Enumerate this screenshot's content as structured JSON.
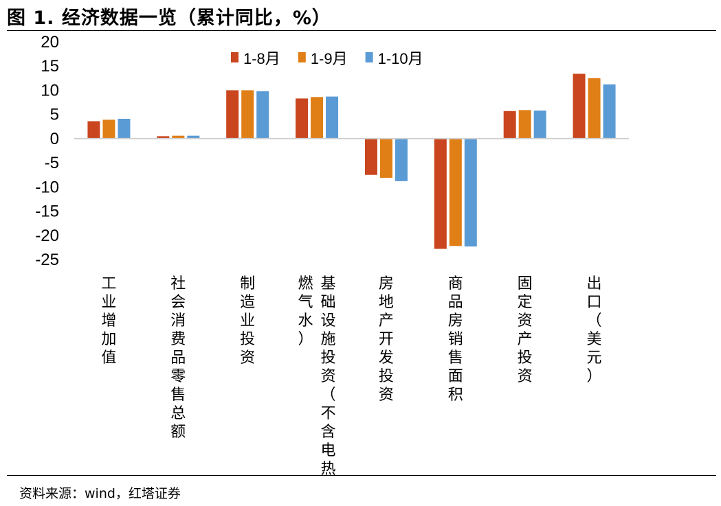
{
  "figure_title": "图 1. 经济数据一览（累计同比，%）",
  "source_note": "资料来源：wind，红塔证券",
  "chart_data": {
    "type": "bar",
    "title": "图 1. 经济数据一览（累计同比，%）",
    "ylim": [
      -25,
      20
    ],
    "yticks": [
      20,
      15,
      10,
      5,
      0,
      -5,
      -10,
      -15,
      -20,
      -25
    ],
    "legend_position": "top-center",
    "grid": false,
    "categories": [
      {
        "name": "工业增加值",
        "columns": [
          "工业增加值"
        ]
      },
      {
        "name": "社会消费品零售总额",
        "columns": [
          "社会消费品零售总额"
        ]
      },
      {
        "name": "制造业投资",
        "columns": [
          "制造业投资"
        ]
      },
      {
        "name": "基础设施投资（不含电热燃气水）",
        "columns": [
          "基础设施投资（不含电热",
          "燃气水）"
        ]
      },
      {
        "name": "房地产开发投资",
        "columns": [
          "房地产开发投资"
        ]
      },
      {
        "name": "商品房销售面积",
        "columns": [
          "商品房销售面积"
        ]
      },
      {
        "name": "固定资产投资",
        "columns": [
          "固定资产投资"
        ]
      },
      {
        "name": "出口（美元）",
        "columns": [
          "出口（美元）"
        ]
      }
    ],
    "series": [
      {
        "name": "1-8月",
        "color": "#C9461F",
        "values": [
          3.6,
          0.5,
          10.0,
          8.3,
          -7.5,
          -22.8,
          5.7,
          13.4
        ]
      },
      {
        "name": "1-9月",
        "color": "#E07F16",
        "values": [
          3.9,
          0.6,
          10.0,
          8.6,
          -8.1,
          -22.2,
          5.9,
          12.5
        ]
      },
      {
        "name": "1-10月",
        "color": "#5B9BD5",
        "values": [
          4.1,
          0.6,
          9.8,
          8.7,
          -8.8,
          -22.3,
          5.8,
          11.2
        ]
      }
    ]
  }
}
